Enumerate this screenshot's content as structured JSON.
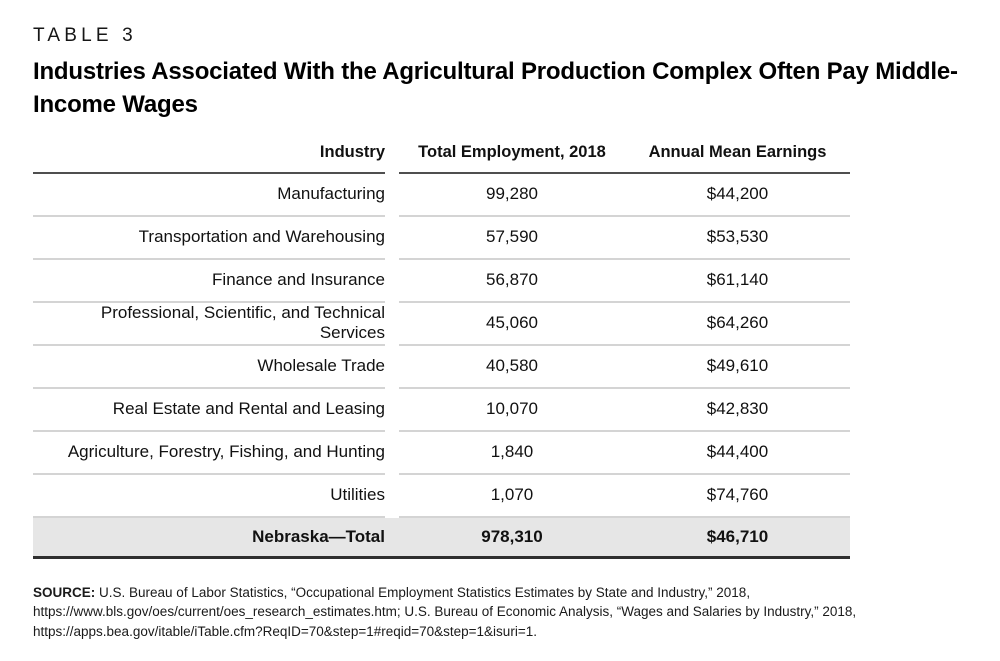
{
  "page": {
    "kicker": "TABLE 3",
    "title": "Industries Associated With the Agricultural Production Complex Often Pay Middle-Income Wages"
  },
  "table": {
    "columns": [
      "Industry",
      "Total Employment, 2018",
      "Annual Mean Earnings"
    ],
    "rows": [
      {
        "industry": "Manufacturing",
        "employment": "99,280",
        "earnings": "$44,200"
      },
      {
        "industry": "Transportation and Warehousing",
        "employment": "57,590",
        "earnings": "$53,530"
      },
      {
        "industry": "Finance and Insurance",
        "employment": "56,870",
        "earnings": "$61,140"
      },
      {
        "industry": "Professional, Scientific, and Technical Services",
        "employment": "45,060",
        "earnings": "$64,260"
      },
      {
        "industry": "Wholesale Trade",
        "employment": "40,580",
        "earnings": "$49,610"
      },
      {
        "industry": "Real Estate and Rental and Leasing",
        "employment": "10,070",
        "earnings": "$42,830"
      },
      {
        "industry": "Agriculture, Forestry, Fishing, and Hunting",
        "employment": "1,840",
        "earnings": "$44,400"
      },
      {
        "industry": "Utilities",
        "employment": "1,070",
        "earnings": "$74,760"
      }
    ],
    "total_row": {
      "industry": "Nebraska—Total",
      "employment": "978,310",
      "earnings": "$46,710"
    }
  },
  "source": {
    "label": "SOURCE:",
    "text": " U.S. Bureau of Labor Statistics, “Occupational Employment Statistics Estimates by State and Industry,” 2018, https://www.bls.gov/oes/current/oes_research_estimates.htm; U.S. Bureau of Economic Analysis, “Wages and Salaries by Industry,” 2018, https://apps.bea.gov/itable/iTable.cfm?ReqID=70&step=1#reqid=70&step=1&isuri=1."
  },
  "colors": {
    "text": "#111111",
    "row_divider": "#d4d4d4",
    "header_rule": "#4f4f4f",
    "total_row_background": "#e6e6e6",
    "bottom_rule": "#2f2f2f"
  }
}
